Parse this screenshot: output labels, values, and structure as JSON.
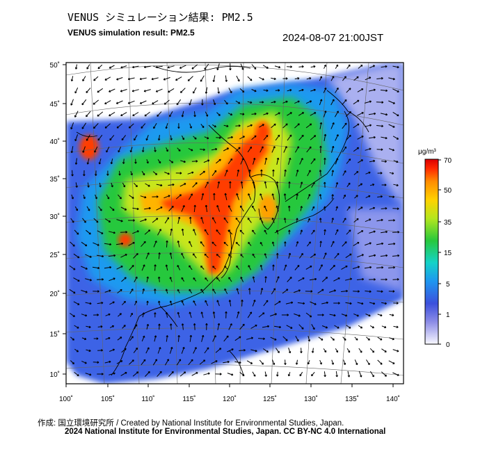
{
  "header": {
    "title_jp": "VENUS シミュレーション結果: PM2.5",
    "title_en": "VENUS simulation result: PM2.5",
    "timestamp": "2024-08-07 21:00JST"
  },
  "map": {
    "region": "East Asia",
    "lon_range": [
      100,
      141
    ],
    "lat_range": [
      9,
      51
    ],
    "lon_ticks": [
      "100˚",
      "105˚",
      "110˚",
      "115˚",
      "120˚",
      "125˚",
      "130˚",
      "135˚",
      "140˚"
    ],
    "lat_ticks": [
      "50˚",
      "45˚",
      "40˚",
      "35˚",
      "30˚",
      "25˚",
      "20˚",
      "15˚",
      "10˚"
    ],
    "background_color": "#ffffff",
    "graticule_color": "#555555",
    "arrow_color": "#000000",
    "icons": [
      "wind-vector-icon"
    ]
  },
  "colorbar": {
    "unit": "μg/m³",
    "ticks": [
      "70",
      "50",
      "35",
      "15",
      "5",
      "1",
      "0"
    ],
    "colors": [
      "#f8f8ff",
      "#3c50dc",
      "#1e96f0",
      "#14d2c8",
      "#28c83c",
      "#b4e61e",
      "#ffd200",
      "#ff8c00",
      "#ff2800",
      "#dc0000"
    ]
  },
  "credits": {
    "line1": "作成: 国立環境研究所 / Created by National Institute for Environmental Studies, Japan.",
    "line2": "2024 National Institute for Environmental Studies, Japan. CC BY-NC 4.0 International"
  }
}
